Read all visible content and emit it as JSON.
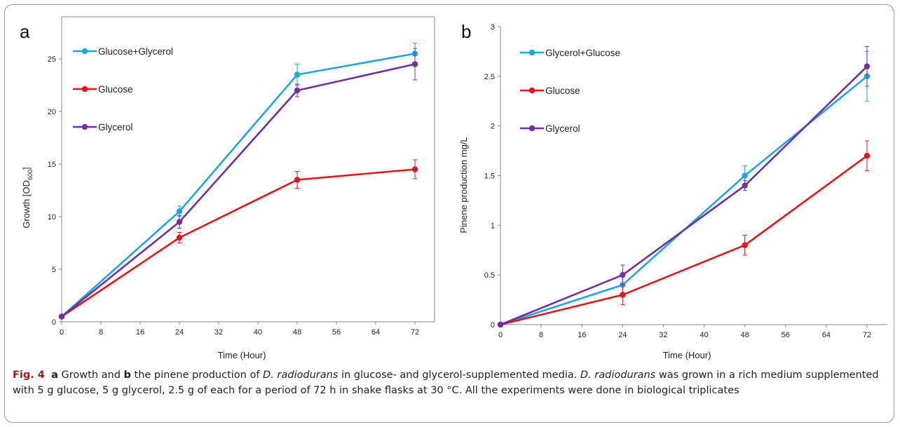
{
  "chart_data": [
    {
      "panel": "a",
      "type": "line",
      "xlabel": "Time (Hour)",
      "ylabel": "Growth [OD600]",
      "xlim": [
        0,
        76
      ],
      "ylim": [
        0,
        29
      ],
      "xticks": [
        0,
        8,
        16,
        24,
        32,
        40,
        48,
        56,
        64,
        72
      ],
      "yticks": [
        0,
        5,
        10,
        15,
        20,
        25
      ],
      "legend_position": "upper-left",
      "x": [
        0,
        24,
        48,
        72
      ],
      "series": [
        {
          "name": "Glucose+Glycerol",
          "color": "#1ea6e0",
          "values": [
            0.5,
            10.5,
            23.5,
            25.5
          ],
          "errors": [
            0,
            0.5,
            1.0,
            1.0
          ]
        },
        {
          "name": "Glucose",
          "color": "#e8141b",
          "values": [
            0.5,
            8.0,
            13.5,
            14.5
          ],
          "errors": [
            0,
            0.5,
            0.8,
            0.9
          ]
        },
        {
          "name": "Glycerol",
          "color": "#7030a0",
          "values": [
            0.5,
            9.5,
            22.0,
            24.5
          ],
          "errors": [
            0,
            0.6,
            0.6,
            1.5
          ]
        }
      ]
    },
    {
      "panel": "b",
      "type": "line",
      "xlabel": "Time (Hour)",
      "ylabel": "Pinene production mg/L",
      "xlim": [
        0,
        76
      ],
      "ylim": [
        0,
        3
      ],
      "xticks": [
        0,
        8,
        16,
        24,
        32,
        40,
        48,
        56,
        64,
        72
      ],
      "yticks": [
        0,
        0.5,
        1,
        1.5,
        2,
        2.5,
        3
      ],
      "legend_position": "upper-left",
      "x": [
        0,
        24,
        48,
        72
      ],
      "series": [
        {
          "name": "Glycerol+Glucose",
          "color": "#1ea6e0",
          "values": [
            0,
            0.4,
            1.5,
            2.5
          ],
          "errors": [
            0,
            0.1,
            0.1,
            0.25
          ]
        },
        {
          "name": "Glucose",
          "color": "#e8141b",
          "values": [
            0,
            0.3,
            0.8,
            1.7
          ],
          "errors": [
            0,
            0.1,
            0.1,
            0.15
          ]
        },
        {
          "name": "Glycerol",
          "color": "#7030a0",
          "values": [
            0,
            0.5,
            1.4,
            2.6
          ],
          "errors": [
            0,
            0.1,
            0.05,
            0.2
          ]
        }
      ]
    }
  ],
  "caption": {
    "fig_label": "Fig. 4",
    "a": "a",
    "t1": " Growth and ",
    "b": "b",
    "t2": " the pinene production of ",
    "species": "D. radiodurans",
    "t3": " in glucose- and glycerol-supplemented media. ",
    "t4": " was grown in a rich medium supplemented with 5 g glucose, 5 g glycerol, 2.5 g of each for a period of 72 h in shake flasks at 30 °C. All the experiments were done in biological triplicates"
  }
}
